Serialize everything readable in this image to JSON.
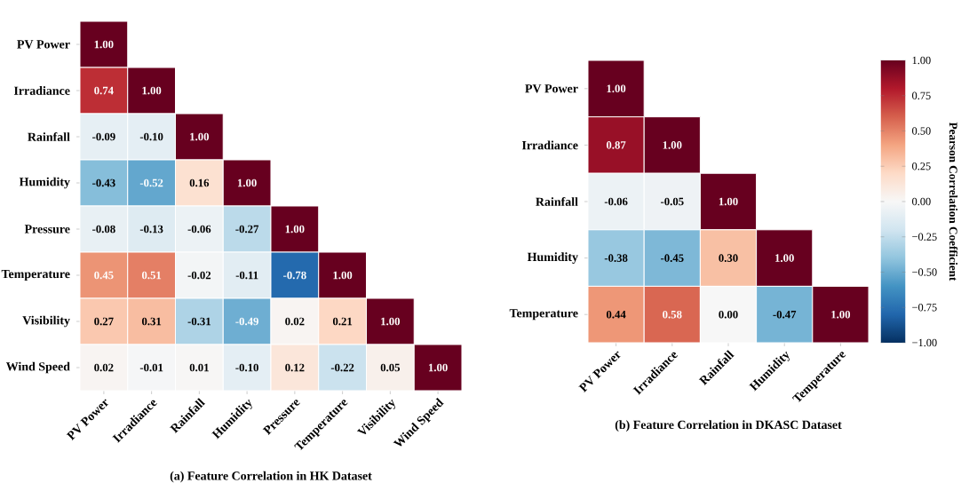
{
  "chart_data": [
    {
      "type": "heatmap",
      "title": "(a) Feature Correlation in HK Dataset",
      "categories": [
        "PV Power",
        "Irradiance",
        "Rainfall",
        "Humidity",
        "Pressure",
        "Temperature",
        "Visibility",
        "Wind Speed"
      ],
      "y_categories": [
        "PV Power",
        "Irradiance",
        "Rainfall",
        "Humidity",
        "Pressure",
        "Temperature",
        "Visibility",
        "Wind Speed"
      ],
      "cells": [
        [
          1.0,
          null,
          null,
          null,
          null,
          null,
          null,
          null
        ],
        [
          0.74,
          1.0,
          null,
          null,
          null,
          null,
          null,
          null
        ],
        [
          -0.09,
          -0.1,
          1.0,
          null,
          null,
          null,
          null,
          null
        ],
        [
          -0.43,
          -0.52,
          0.16,
          1.0,
          null,
          null,
          null,
          null
        ],
        [
          -0.08,
          -0.13,
          -0.06,
          -0.27,
          1.0,
          null,
          null,
          null
        ],
        [
          0.45,
          0.51,
          -0.02,
          -0.11,
          -0.78,
          1.0,
          null,
          null
        ],
        [
          0.27,
          0.31,
          -0.31,
          -0.49,
          0.02,
          0.21,
          1.0,
          null
        ],
        [
          0.02,
          -0.01,
          0.01,
          -0.1,
          0.12,
          -0.22,
          0.05,
          1.0
        ]
      ],
      "cell_labels": [
        [
          "1.00",
          null,
          null,
          null,
          null,
          null,
          null,
          null
        ],
        [
          "0.74",
          "1.00",
          null,
          null,
          null,
          null,
          null,
          null
        ],
        [
          "-0.09",
          "-0.10",
          "1.00",
          null,
          null,
          null,
          null,
          null
        ],
        [
          "-0.43",
          "-0.52",
          "0.16",
          "1.00",
          null,
          null,
          null,
          null
        ],
        [
          "-0.08",
          "-0.13",
          "-0.06",
          "-0.27",
          "1.00",
          null,
          null,
          null
        ],
        [
          "0.45",
          "0.51",
          "-0.02",
          "-0.11",
          "-0.78",
          "1.00",
          null,
          null
        ],
        [
          "0.27",
          "0.31",
          "-0.31",
          "-0.49",
          "0.02",
          "0.21",
          "1.00",
          null
        ],
        [
          "0.02",
          "-0.01",
          "0.01",
          "-0.10",
          "0.12",
          "-0.22",
          "0.05",
          "1.00"
        ]
      ]
    },
    {
      "type": "heatmap",
      "title": "(b) Feature Correlation in DKASC Dataset",
      "clabel": "Pearson Correlation Coefficient",
      "categories": [
        "PV Power",
        "Irradiance",
        "Rainfall",
        "Humidity",
        "Temperature"
      ],
      "y_categories": [
        "PV Power",
        "Irradiance",
        "Rainfall",
        "Humidity",
        "Temperature"
      ],
      "cells": [
        [
          1.0,
          null,
          null,
          null,
          null
        ],
        [
          0.87,
          1.0,
          null,
          null,
          null
        ],
        [
          -0.06,
          -0.05,
          1.0,
          null,
          null
        ],
        [
          -0.38,
          -0.45,
          0.3,
          1.0,
          null
        ],
        [
          0.44,
          0.58,
          0.0,
          -0.47,
          1.0
        ]
      ],
      "cell_labels": [
        [
          "1.00",
          null,
          null,
          null,
          null
        ],
        [
          "0.87",
          "1.00",
          null,
          null,
          null
        ],
        [
          "-0.06",
          "-0.05",
          "1.00",
          null,
          null
        ],
        [
          "-0.38",
          "-0.45",
          "0.30",
          "1.00",
          null
        ],
        [
          "0.44",
          "0.58",
          "0.00",
          "-0.47",
          "1.00"
        ]
      ],
      "clim": [
        -1,
        1
      ],
      "cticks": [
        {
          "value": -1,
          "label": "−1.00"
        },
        {
          "value": -0.75,
          "label": "−0.75"
        },
        {
          "value": -0.5,
          "label": "−0.50"
        },
        {
          "value": -0.25,
          "label": "−0.25"
        },
        {
          "value": 0,
          "label": "0.00"
        },
        {
          "value": 0.25,
          "label": "0.25"
        },
        {
          "value": 0.5,
          "label": "0.50"
        },
        {
          "value": 0.75,
          "label": "0.75"
        },
        {
          "value": 1,
          "label": "1.00"
        }
      ]
    }
  ]
}
